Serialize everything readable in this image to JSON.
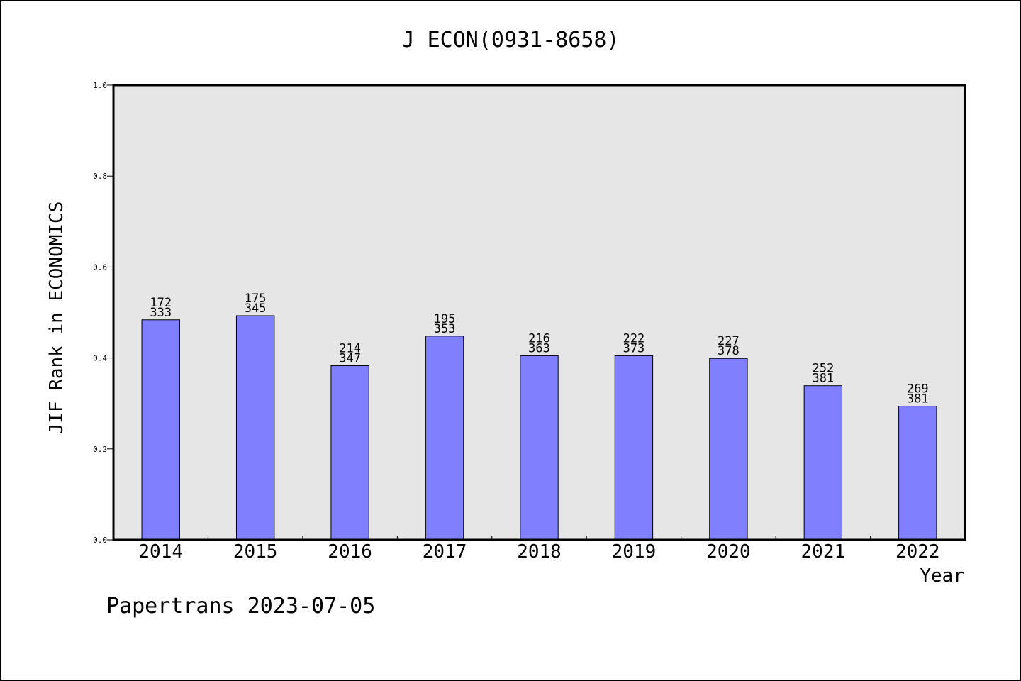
{
  "chart_data": {
    "type": "bar",
    "title": "J ECON(0931-8658)",
    "xlabel": "Year",
    "ylabel": "JIF Rank in ECONOMICS",
    "categories": [
      "2014",
      "2015",
      "2016",
      "2017",
      "2018",
      "2019",
      "2020",
      "2021",
      "2022"
    ],
    "values": [
      0.484,
      0.493,
      0.383,
      0.448,
      0.405,
      0.405,
      0.399,
      0.339,
      0.294
    ],
    "rank_labels": [
      "172",
      "175",
      "214",
      "195",
      "216",
      "222",
      "227",
      "252",
      "269"
    ],
    "total_labels": [
      "333",
      "345",
      "347",
      "353",
      "363",
      "373",
      "378",
      "381",
      "381"
    ],
    "ylim": [
      0,
      1.0
    ],
    "yticks": [
      "0.0",
      "0.2",
      "0.4",
      "0.6",
      "0.8",
      "1.0"
    ],
    "grid": false,
    "colors": {
      "bar": "#8080ff",
      "plot_background": "#e6e6e6"
    }
  },
  "footer": "Papertrans 2023-07-05"
}
